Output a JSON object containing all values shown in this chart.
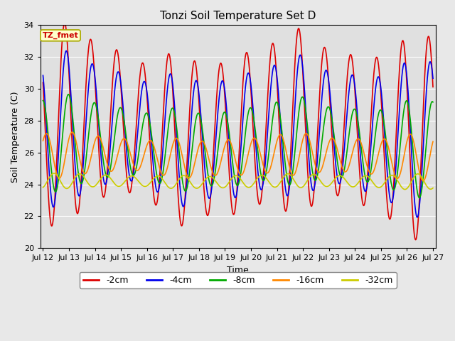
{
  "title": "Tonzi Soil Temperature Set D",
  "xlabel": "Time",
  "ylabel": "Soil Temperature (C)",
  "ylim": [
    20,
    34
  ],
  "annotation_text": "TZ_fmet",
  "annotation_bg": "#ffffcc",
  "annotation_border": "#aaaa00",
  "series": [
    {
      "label": "-2cm",
      "color": "#dd0000",
      "amp": 5.2,
      "phase_hr": 0.0,
      "mean": 27.5
    },
    {
      "label": "-4cm",
      "color": "#0000ee",
      "amp": 4.0,
      "phase_hr": 1.5,
      "mean": 27.3
    },
    {
      "label": "-8cm",
      "color": "#00aa00",
      "amp": 2.5,
      "phase_hr": 3.5,
      "mean": 26.5
    },
    {
      "label": "-16cm",
      "color": "#ff8800",
      "amp": 1.2,
      "phase_hr": 7.0,
      "mean": 25.8
    },
    {
      "label": "-32cm",
      "color": "#cccc00",
      "amp": 0.4,
      "phase_hr": 14.0,
      "mean": 24.2
    }
  ],
  "x_ticks": [
    "Jul 12",
    "Jul 13",
    "Jul 14",
    "Jul 15",
    "Jul 16",
    "Jul 17",
    "Jul 18",
    "Jul 19",
    "Jul 20",
    "Jul 21",
    "Jul 22",
    "Jul 23",
    "Jul 24",
    "Jul 25",
    "Jul 26",
    "Jul 27"
  ],
  "grid_color": "#ffffff",
  "linewidth": 1.2,
  "fig_bg": "#e8e8e8",
  "plot_bg": "#e0e0e0"
}
